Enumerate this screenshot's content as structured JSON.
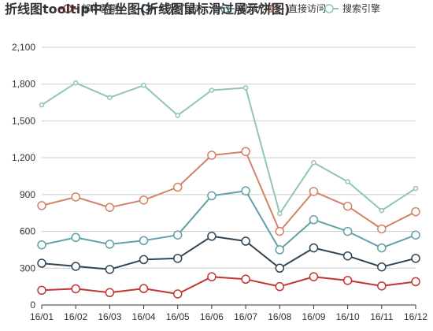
{
  "chart_data": {
    "type": "line",
    "title": "折线图tooltip中在坐图(折线图鼠标滑过展示饼图)",
    "categories": [
      "16/01",
      "16/02",
      "16/03",
      "16/04",
      "16/05",
      "16/06",
      "16/07",
      "16/08",
      "16/09",
      "16/10",
      "16/11",
      "16/12"
    ],
    "y_ticks": [
      "0",
      "300",
      "600",
      "900",
      "1,200",
      "1,500",
      "1,800",
      "2,100"
    ],
    "ylim": [
      0,
      2100
    ],
    "grid": true,
    "legend_position": "top",
    "series": [
      {
        "name": "邮件营销",
        "color": "#c23531",
        "values": [
          120,
          132,
          101,
          134,
          90,
          230,
          210,
          150,
          230,
          200,
          155,
          190
        ]
      },
      {
        "name": "联盟广告",
        "color": "#2f4554",
        "values": [
          340,
          315,
          290,
          370,
          380,
          560,
          520,
          300,
          465,
          400,
          310,
          380
        ]
      },
      {
        "name": "视频广告",
        "color": "#61a0a8",
        "values": [
          490,
          550,
          495,
          525,
          570,
          890,
          930,
          450,
          695,
          600,
          465,
          570
        ]
      },
      {
        "name": "直接访问",
        "color": "#d48265",
        "values": [
          810,
          880,
          795,
          855,
          960,
          1220,
          1250,
          600,
          925,
          805,
          620,
          760
        ]
      },
      {
        "name": "搜索引擎",
        "color": "#91c7ae",
        "values": [
          1630,
          1810,
          1690,
          1790,
          1545,
          1750,
          1770,
          745,
          1160,
          1005,
          770,
          950
        ]
      }
    ]
  }
}
